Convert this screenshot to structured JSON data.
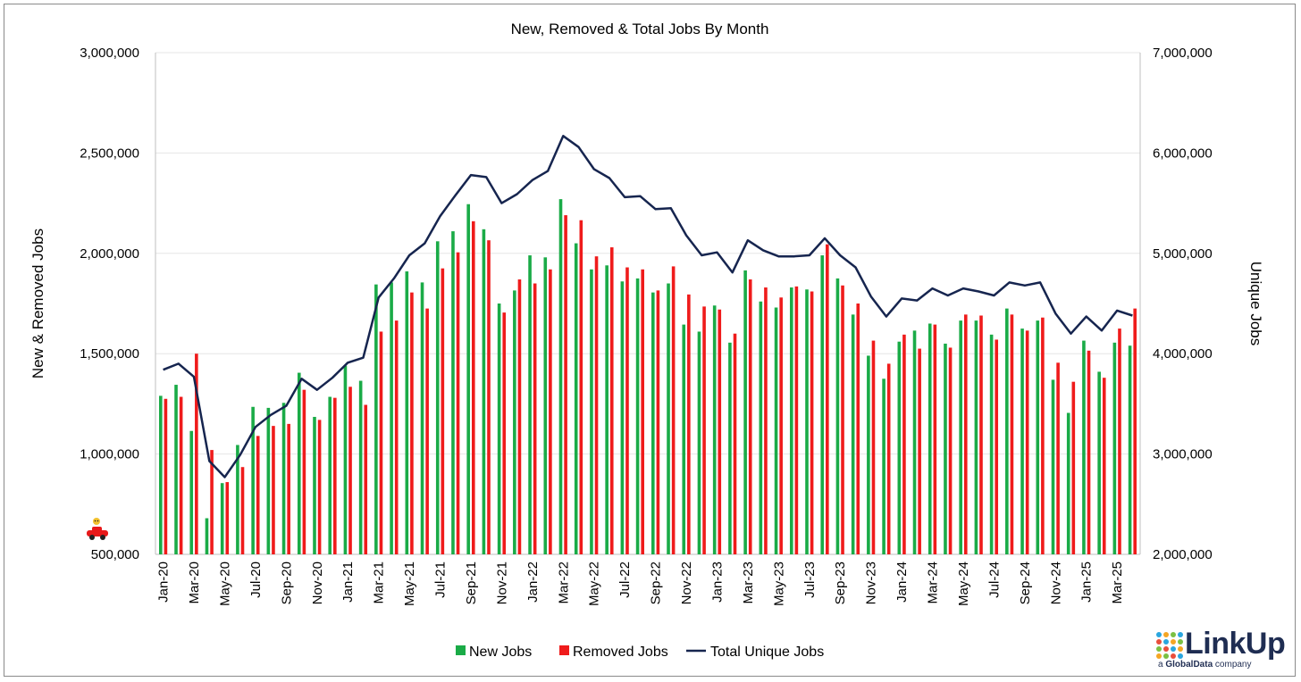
{
  "chart_data": {
    "type": "bar+line",
    "title": "New, Removed & Total Jobs By Month",
    "ylabel_left": "New & Removed Jobs",
    "ylabel_right": "Unique Jobs",
    "ylim_left": [
      500000,
      3000000
    ],
    "ylim_right": [
      2000000,
      7000000
    ],
    "yticks_left": [
      "500,000",
      "1,000,000",
      "1,500,000",
      "2,000,000",
      "2,500,000",
      "3,000,000"
    ],
    "yticks_right": [
      "2,000,000",
      "3,000,000",
      "4,000,000",
      "5,000,000",
      "6,000,000",
      "7,000,000"
    ],
    "yticks_left_values": [
      500000,
      1000000,
      1500000,
      2000000,
      2500000,
      3000000
    ],
    "yticks_right_values": [
      2000000,
      3000000,
      4000000,
      5000000,
      6000000,
      7000000
    ],
    "categories": [
      "Jan-20",
      "Feb-20",
      "Mar-20",
      "Apr-20",
      "May-20",
      "Jun-20",
      "Jul-20",
      "Aug-20",
      "Sep-20",
      "Oct-20",
      "Nov-20",
      "Dec-20",
      "Jan-21",
      "Feb-21",
      "Mar-21",
      "Apr-21",
      "May-21",
      "Jun-21",
      "Jul-21",
      "Aug-21",
      "Sep-21",
      "Oct-21",
      "Nov-21",
      "Dec-21",
      "Jan-22",
      "Feb-22",
      "Mar-22",
      "Apr-22",
      "May-22",
      "Jun-22",
      "Jul-22",
      "Aug-22",
      "Sep-22",
      "Oct-22",
      "Nov-22",
      "Dec-22",
      "Jan-23",
      "Feb-23",
      "Mar-23",
      "Apr-23",
      "May-23",
      "Jun-23",
      "Jul-23",
      "Aug-23",
      "Sep-23",
      "Oct-23",
      "Nov-23",
      "Dec-23",
      "Jan-24",
      "Feb-24",
      "Mar-24",
      "Apr-24",
      "May-24",
      "Jun-24",
      "Jul-24",
      "Aug-24",
      "Sep-24",
      "Oct-24",
      "Nov-24",
      "Dec-24",
      "Jan-25",
      "Feb-25",
      "Mar-25",
      "Apr-25"
    ],
    "xtick_labels": [
      "Jan-20",
      "Mar-20",
      "May-20",
      "Jul-20",
      "Sep-20",
      "Nov-20",
      "Jan-21",
      "Mar-21",
      "May-21",
      "Jul-21",
      "Sep-21",
      "Nov-21",
      "Jan-22",
      "Mar-22",
      "May-22",
      "Jul-22",
      "Sep-22",
      "Nov-22",
      "Jan-23",
      "Mar-23",
      "May-23",
      "Jul-23",
      "Sep-23",
      "Nov-23",
      "Jan-24",
      "Mar-24",
      "May-24",
      "Jul-24",
      "Sep-24",
      "Nov-24",
      "Jan-25",
      "Mar-25"
    ],
    "series": [
      {
        "name": "New Jobs",
        "type": "bar",
        "axis": "left",
        "color": "#1aab47",
        "values": [
          1290000,
          1345000,
          1115000,
          680000,
          855000,
          1045000,
          1235000,
          1230000,
          1255000,
          1405000,
          1185000,
          1285000,
          1440000,
          1365000,
          1845000,
          1855000,
          1910000,
          1855000,
          2060000,
          2110000,
          2245000,
          2120000,
          1750000,
          1815000,
          1990000,
          1980000,
          2270000,
          2050000,
          1920000,
          1940000,
          1860000,
          1875000,
          1805000,
          1850000,
          1645000,
          1610000,
          1740000,
          1555000,
          1915000,
          1760000,
          1730000,
          1830000,
          1820000,
          1990000,
          1875000,
          1695000,
          1490000,
          1375000,
          1560000,
          1615000,
          1650000,
          1550000,
          1665000,
          1665000,
          1595000,
          1725000,
          1625000,
          1665000,
          1370000,
          1205000,
          1565000,
          1410000,
          1555000,
          1540000
        ]
      },
      {
        "name": "Removed Jobs",
        "type": "bar",
        "axis": "left",
        "color": "#ef1b1b",
        "values": [
          1275000,
          1285000,
          1500000,
          1020000,
          860000,
          935000,
          1090000,
          1140000,
          1150000,
          1320000,
          1170000,
          1280000,
          1335000,
          1245000,
          1610000,
          1665000,
          1805000,
          1725000,
          1925000,
          2005000,
          2160000,
          2065000,
          1705000,
          1870000,
          1850000,
          1920000,
          2190000,
          2165000,
          1985000,
          2030000,
          1930000,
          1920000,
          1815000,
          1935000,
          1795000,
          1735000,
          1720000,
          1600000,
          1870000,
          1830000,
          1780000,
          1835000,
          1810000,
          2045000,
          1840000,
          1750000,
          1565000,
          1450000,
          1595000,
          1525000,
          1645000,
          1530000,
          1695000,
          1690000,
          1570000,
          1695000,
          1615000,
          1680000,
          1455000,
          1360000,
          1515000,
          1380000,
          1625000,
          1725000
        ]
      },
      {
        "name": "Total Unique Jobs",
        "type": "line",
        "axis": "right",
        "color": "#16254f",
        "values": [
          3840000,
          3900000,
          3770000,
          2930000,
          2770000,
          2990000,
          3270000,
          3390000,
          3480000,
          3750000,
          3640000,
          3760000,
          3910000,
          3960000,
          4560000,
          4750000,
          4980000,
          5100000,
          5370000,
          5580000,
          5780000,
          5760000,
          5500000,
          5590000,
          5730000,
          5820000,
          6170000,
          6060000,
          5840000,
          5750000,
          5560000,
          5570000,
          5440000,
          5450000,
          5180000,
          4980000,
          5010000,
          4810000,
          5130000,
          5030000,
          4970000,
          4970000,
          4980000,
          5150000,
          4980000,
          4860000,
          4570000,
          4370000,
          4550000,
          4530000,
          4650000,
          4580000,
          4650000,
          4620000,
          4580000,
          4710000,
          4680000,
          4710000,
          4400000,
          4200000,
          4370000,
          4230000,
          4430000,
          4380000
        ]
      }
    ],
    "legend_position": "bottom-center",
    "gridlines": true
  },
  "logo": {
    "word": "LinkUp",
    "tag_prefix": "a",
    "tag_brand": "GlobalData",
    "tag_suffix": "company"
  }
}
